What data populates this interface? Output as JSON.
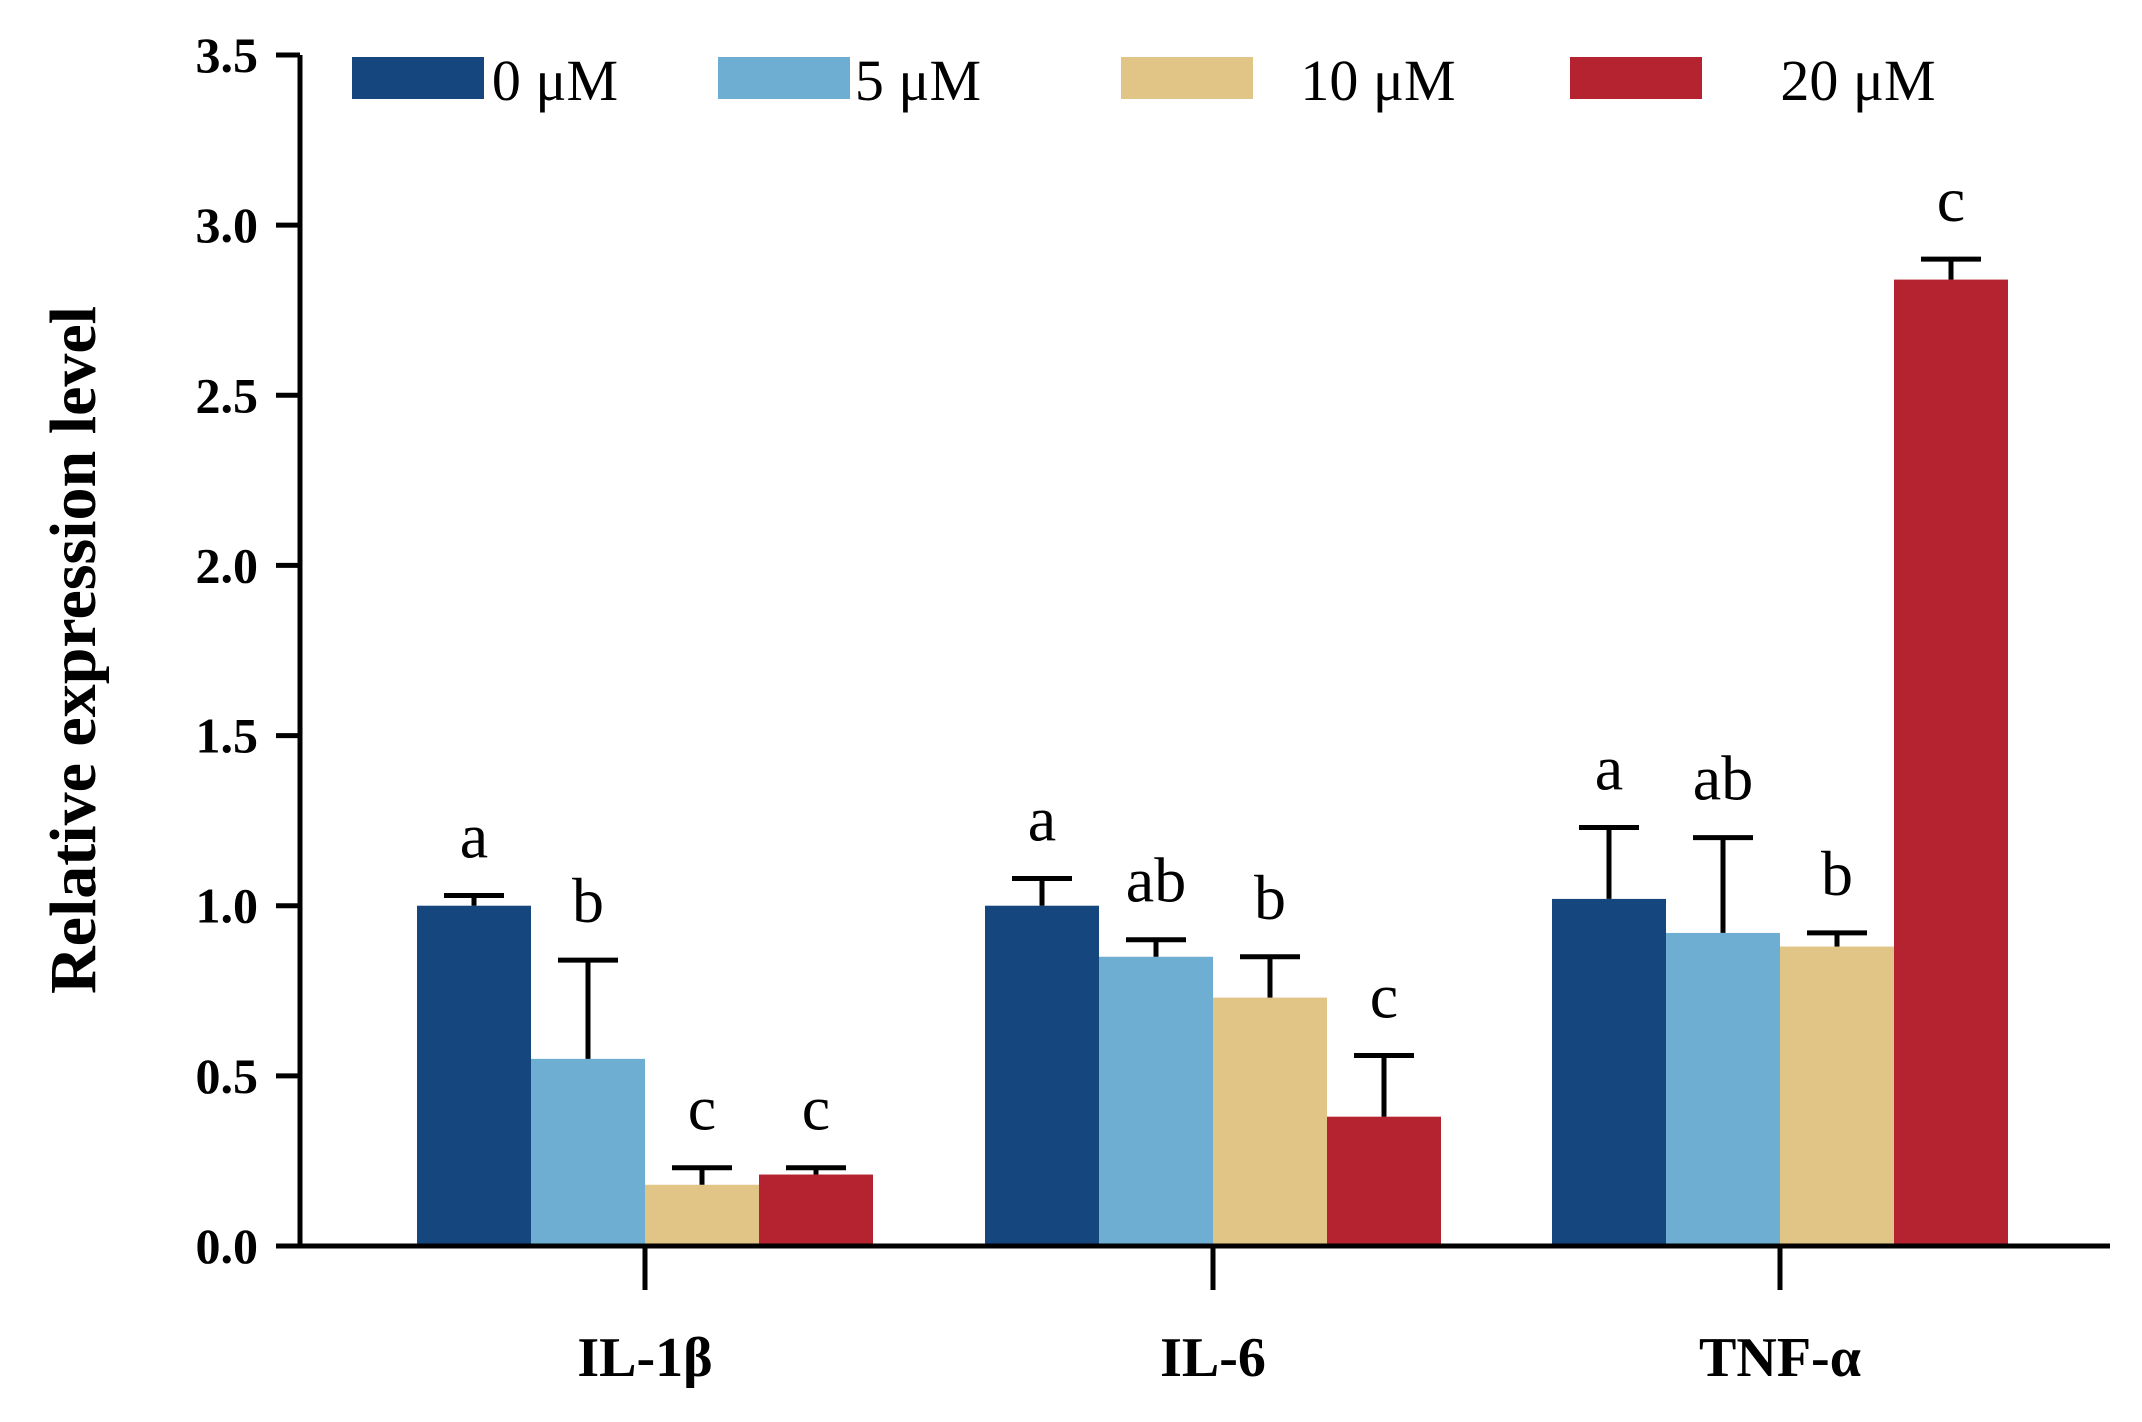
{
  "chart_data": {
    "type": "bar",
    "title": "",
    "xlabel": "",
    "ylabel": "Relative expression level",
    "ylim": [
      0,
      3.5
    ],
    "yticks": [
      "0.0",
      "0.5",
      "1.0",
      "1.5",
      "2.0",
      "2.5",
      "3.0",
      "3.5"
    ],
    "grid": false,
    "legend_position": "top",
    "categories": [
      "IL-1β",
      "IL-6",
      "TNF-α"
    ],
    "series": [
      {
        "name": "0 μM",
        "color": "#15467e",
        "values": [
          1.0,
          1.0,
          1.02
        ],
        "errors": [
          0.03,
          0.08,
          0.21
        ],
        "labels": [
          "a",
          "a",
          "a"
        ]
      },
      {
        "name": "5 μM",
        "color": "#6eaed3",
        "values": [
          0.55,
          0.85,
          0.92
        ],
        "errors": [
          0.29,
          0.05,
          0.28
        ],
        "labels": [
          "b",
          "ab",
          "ab"
        ]
      },
      {
        "name": "10 μM",
        "color": "#e1c587",
        "values": [
          0.18,
          0.73,
          0.88
        ],
        "errors": [
          0.05,
          0.12,
          0.04
        ],
        "labels": [
          "c",
          "b",
          "b"
        ]
      },
      {
        "name": "20 μM",
        "color": "#b52330",
        "values": [
          0.21,
          0.38,
          2.84
        ],
        "errors": [
          0.02,
          0.18,
          0.06
        ],
        "labels": [
          "c",
          "c",
          "c"
        ]
      }
    ]
  }
}
